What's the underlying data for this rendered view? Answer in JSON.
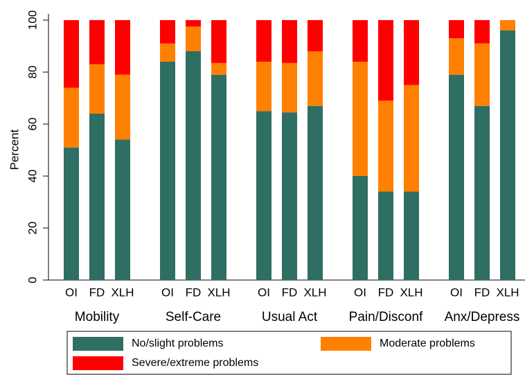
{
  "chart_data": {
    "type": "stacked_bar",
    "ylabel": "Percent",
    "groups": [
      "Mobility",
      "Self-Care",
      "Usual Act",
      "Pain/Disconf",
      "Anx/Depress"
    ],
    "categories": [
      "OI",
      "FD",
      "XLH",
      "OI",
      "FD",
      "XLH",
      "OI",
      "FD",
      "XLH",
      "OI",
      "FD",
      "XLH",
      "OI",
      "FD",
      "XLH"
    ],
    "series": [
      {
        "name": "No/slight problems",
        "color": "#2f6e63",
        "values": [
          51,
          64,
          54,
          84,
          88,
          79,
          65,
          64.5,
          67,
          40,
          34,
          34,
          79,
          67,
          96
        ]
      },
      {
        "name": "Moderate problems",
        "color": "#ff8000",
        "values": [
          23,
          19,
          25,
          7,
          9.5,
          4.5,
          19,
          19,
          21,
          44,
          35,
          41,
          14,
          24,
          4
        ]
      },
      {
        "name": "Severe/extreme problems",
        "color": "#ff0000",
        "values": [
          26,
          17,
          21,
          9,
          2.5,
          16.5,
          16,
          16.5,
          12,
          16,
          31,
          25,
          7,
          9,
          0
        ]
      }
    ],
    "ylim": [
      0,
      100
    ],
    "yticks": [
      0,
      20,
      40,
      60,
      80,
      100
    ],
    "legend": "bottom"
  }
}
